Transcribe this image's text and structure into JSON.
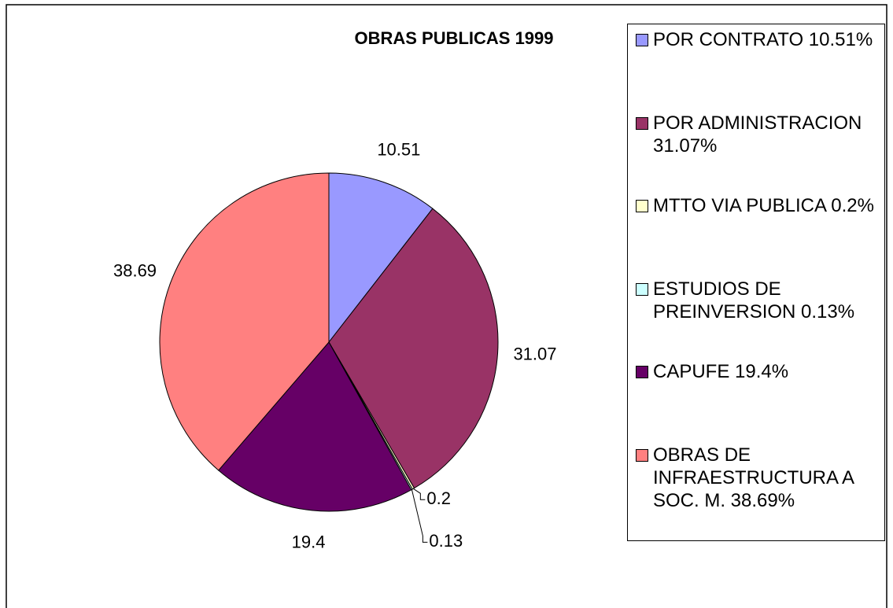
{
  "chart_data": {
    "type": "pie",
    "title": "OBRAS PUBLICAS 1999",
    "categories": [
      "POR CONTRATO 10.51%",
      "POR ADMINISTRACION 31.07%",
      "MTTO VIA PUBLICA 0.2%",
      "ESTUDIOS DE PREINVERSION 0.13%",
      "CAPUFE 19.4%",
      "OBRAS DE INFRAESTRUCTURA A SOC. M. 38.69%"
    ],
    "values": [
      10.51,
      31.07,
      0.2,
      0.13,
      19.4,
      38.69
    ],
    "colors": [
      "#9999ff",
      "#993366",
      "#ffffcc",
      "#ccffff",
      "#660066",
      "#ff8080"
    ],
    "legend": "right"
  }
}
